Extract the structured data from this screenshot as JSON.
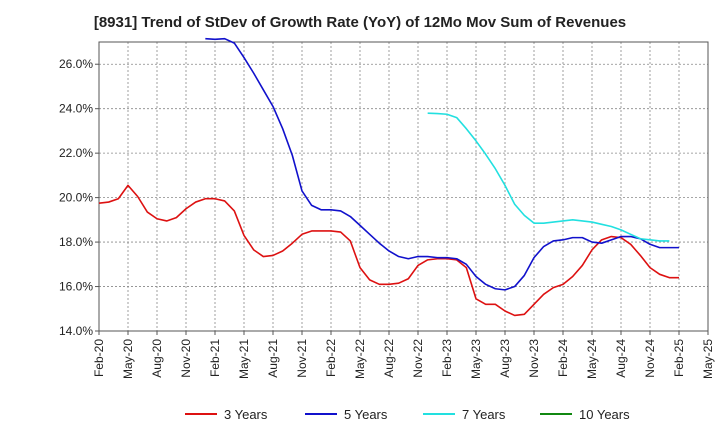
{
  "chart_data": {
    "type": "line",
    "title": "[8931]  Trend of StDev of Growth Rate (YoY) of 12Mo Mov Sum of Revenues",
    "xlabel": "",
    "ylabel": "",
    "ylim": [
      14.0,
      27.0
    ],
    "yticks": [
      14.0,
      16.0,
      18.0,
      20.0,
      22.0,
      24.0,
      26.0
    ],
    "ytick_labels": [
      "14.0%",
      "16.0%",
      "18.0%",
      "20.0%",
      "22.0%",
      "24.0%",
      "26.0%"
    ],
    "xticks": [
      "Feb-20",
      "May-20",
      "Aug-20",
      "Nov-20",
      "Feb-21",
      "May-21",
      "Aug-21",
      "Nov-21",
      "Feb-22",
      "May-22",
      "Aug-22",
      "Nov-22",
      "Feb-23",
      "May-23",
      "Aug-23",
      "Nov-23",
      "Feb-24",
      "May-24",
      "Aug-24",
      "Nov-24",
      "Feb-25",
      "May-25"
    ],
    "grid": true,
    "legend_position": "bottom",
    "series": [
      {
        "name": "3 Years",
        "color": "#dd1111",
        "start": "Feb-20",
        "values": [
          19.75,
          19.8,
          19.95,
          20.55,
          20.05,
          19.35,
          19.05,
          18.95,
          19.1,
          19.5,
          19.8,
          19.95,
          19.95,
          19.85,
          19.4,
          18.3,
          17.65,
          17.35,
          17.4,
          17.6,
          17.95,
          18.35,
          18.5,
          18.5,
          18.5,
          18.45,
          18.05,
          16.85,
          16.3,
          16.1,
          16.1,
          16.15,
          16.35,
          16.95,
          17.2,
          17.25,
          17.25,
          17.2,
          16.85,
          15.45,
          15.2,
          15.2,
          14.9,
          14.7,
          14.75,
          15.2,
          15.65,
          15.95,
          16.1,
          16.45,
          16.95,
          17.65,
          18.1,
          18.25,
          18.2,
          17.9,
          17.4,
          16.85,
          16.55,
          16.4,
          16.4
        ]
      },
      {
        "name": "5 Years",
        "color": "#1111cc",
        "start": "Feb-20",
        "values": [
          null,
          null,
          null,
          null,
          null,
          null,
          null,
          null,
          null,
          null,
          null,
          27.15,
          27.12,
          27.15,
          26.95,
          26.3,
          25.6,
          24.85,
          24.1,
          23.1,
          21.9,
          20.3,
          19.65,
          19.45,
          19.45,
          19.4,
          19.15,
          18.75,
          18.35,
          17.95,
          17.6,
          17.35,
          17.25,
          17.35,
          17.35,
          17.3,
          17.3,
          17.25,
          17.0,
          16.45,
          16.1,
          15.9,
          15.85,
          16.0,
          16.5,
          17.3,
          17.8,
          18.05,
          18.1,
          18.2,
          18.2,
          18.0,
          17.95,
          18.1,
          18.25,
          18.25,
          18.15,
          17.9,
          17.75,
          17.75,
          17.75
        ]
      },
      {
        "name": "7 Years",
        "color": "#22e0e0",
        "start": "Feb-20",
        "values": [
          null,
          null,
          null,
          null,
          null,
          null,
          null,
          null,
          null,
          null,
          null,
          null,
          null,
          null,
          null,
          null,
          null,
          null,
          null,
          null,
          null,
          null,
          null,
          null,
          null,
          null,
          null,
          null,
          null,
          null,
          null,
          null,
          null,
          null,
          23.8,
          23.78,
          23.75,
          23.6,
          23.1,
          22.55,
          21.95,
          21.3,
          20.55,
          19.7,
          19.2,
          18.85,
          18.85,
          18.9,
          18.95,
          19.0,
          18.95,
          18.9,
          18.8,
          18.7,
          18.55,
          18.35,
          18.15,
          18.1,
          18.05,
          18.05,
          null
        ]
      },
      {
        "name": "10 Years",
        "color": "#118811",
        "start": "Feb-20",
        "values": []
      }
    ]
  }
}
